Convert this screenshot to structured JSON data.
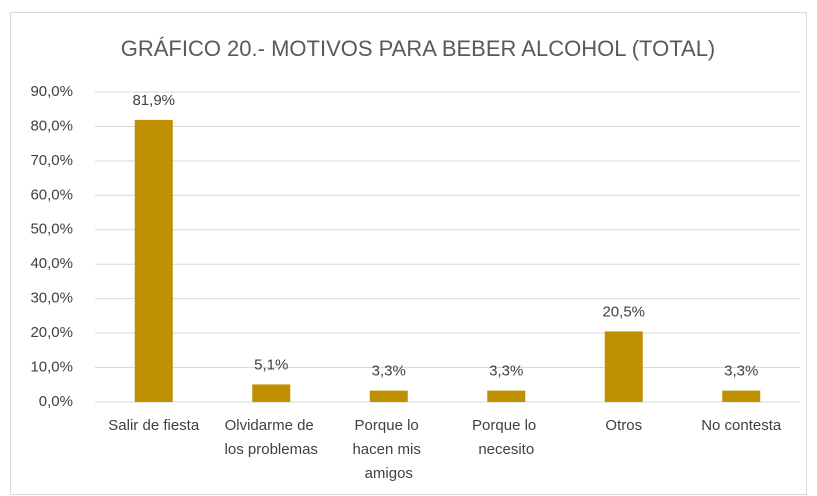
{
  "chart_data": {
    "type": "bar",
    "title": "GRÁFICO 20.- MOTIVOS PARA BEBER ALCOHOL (TOTAL)",
    "categories": [
      "Salir de fiesta",
      "Olvidarme de los problemas",
      "Porque lo hacen mis amigos",
      "Porque lo necesito",
      "Otros",
      "No contesta"
    ],
    "values": [
      81.9,
      5.1,
      3.3,
      3.3,
      20.5,
      3.3
    ],
    "value_labels": [
      "81,9%",
      "5,1%",
      "3,3%",
      "3,3%",
      "20,5%",
      "3,3%"
    ],
    "color": "#bf9000",
    "ylim": [
      0,
      90
    ],
    "yticks": [
      {
        "value": 0,
        "label": "0,0%"
      },
      {
        "value": 10,
        "label": "10,0%"
      },
      {
        "value": 20,
        "label": "20,0%"
      },
      {
        "value": 30,
        "label": "30,0%"
      },
      {
        "value": 40,
        "label": "40,0%"
      },
      {
        "value": 50,
        "label": "50,0%"
      },
      {
        "value": 60,
        "label": "60,0%"
      },
      {
        "value": 70,
        "label": "70,0%"
      },
      {
        "value": 80,
        "label": "80,0%"
      },
      {
        "value": 90,
        "label": "90,0%"
      }
    ],
    "grid": true
  }
}
